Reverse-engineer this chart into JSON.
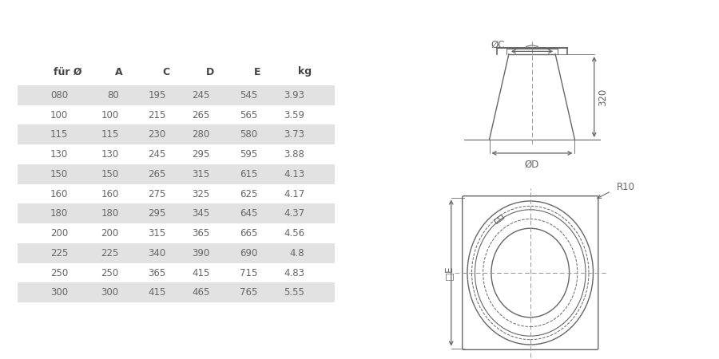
{
  "table_headers": [
    "für Ø",
    "A",
    "C",
    "D",
    "E",
    "kg"
  ],
  "table_rows": [
    [
      "080",
      "80",
      "195",
      "245",
      "545",
      "3.93"
    ],
    [
      "100",
      "100",
      "215",
      "265",
      "565",
      "3.59"
    ],
    [
      "115",
      "115",
      "230",
      "280",
      "580",
      "3.73"
    ],
    [
      "130",
      "130",
      "245",
      "295",
      "595",
      "3.88"
    ],
    [
      "150",
      "150",
      "265",
      "315",
      "615",
      "4.13"
    ],
    [
      "160",
      "160",
      "275",
      "325",
      "625",
      "4.17"
    ],
    [
      "180",
      "180",
      "295",
      "345",
      "645",
      "4.37"
    ],
    [
      "200",
      "200",
      "315",
      "365",
      "665",
      "4.56"
    ],
    [
      "225",
      "225",
      "340",
      "390",
      "690",
      "4.8"
    ],
    [
      "250",
      "250",
      "365",
      "415",
      "715",
      "4.83"
    ],
    [
      "300",
      "300",
      "415",
      "465",
      "765",
      "5.55"
    ]
  ],
  "shaded_rows": [
    0,
    2,
    4,
    6,
    8,
    10
  ],
  "bg_color": "#ffffff",
  "shade_color": "#e2e2e2",
  "text_color": "#666666",
  "header_color": "#444444",
  "line_color": "#666666",
  "dim_color": "#999999"
}
